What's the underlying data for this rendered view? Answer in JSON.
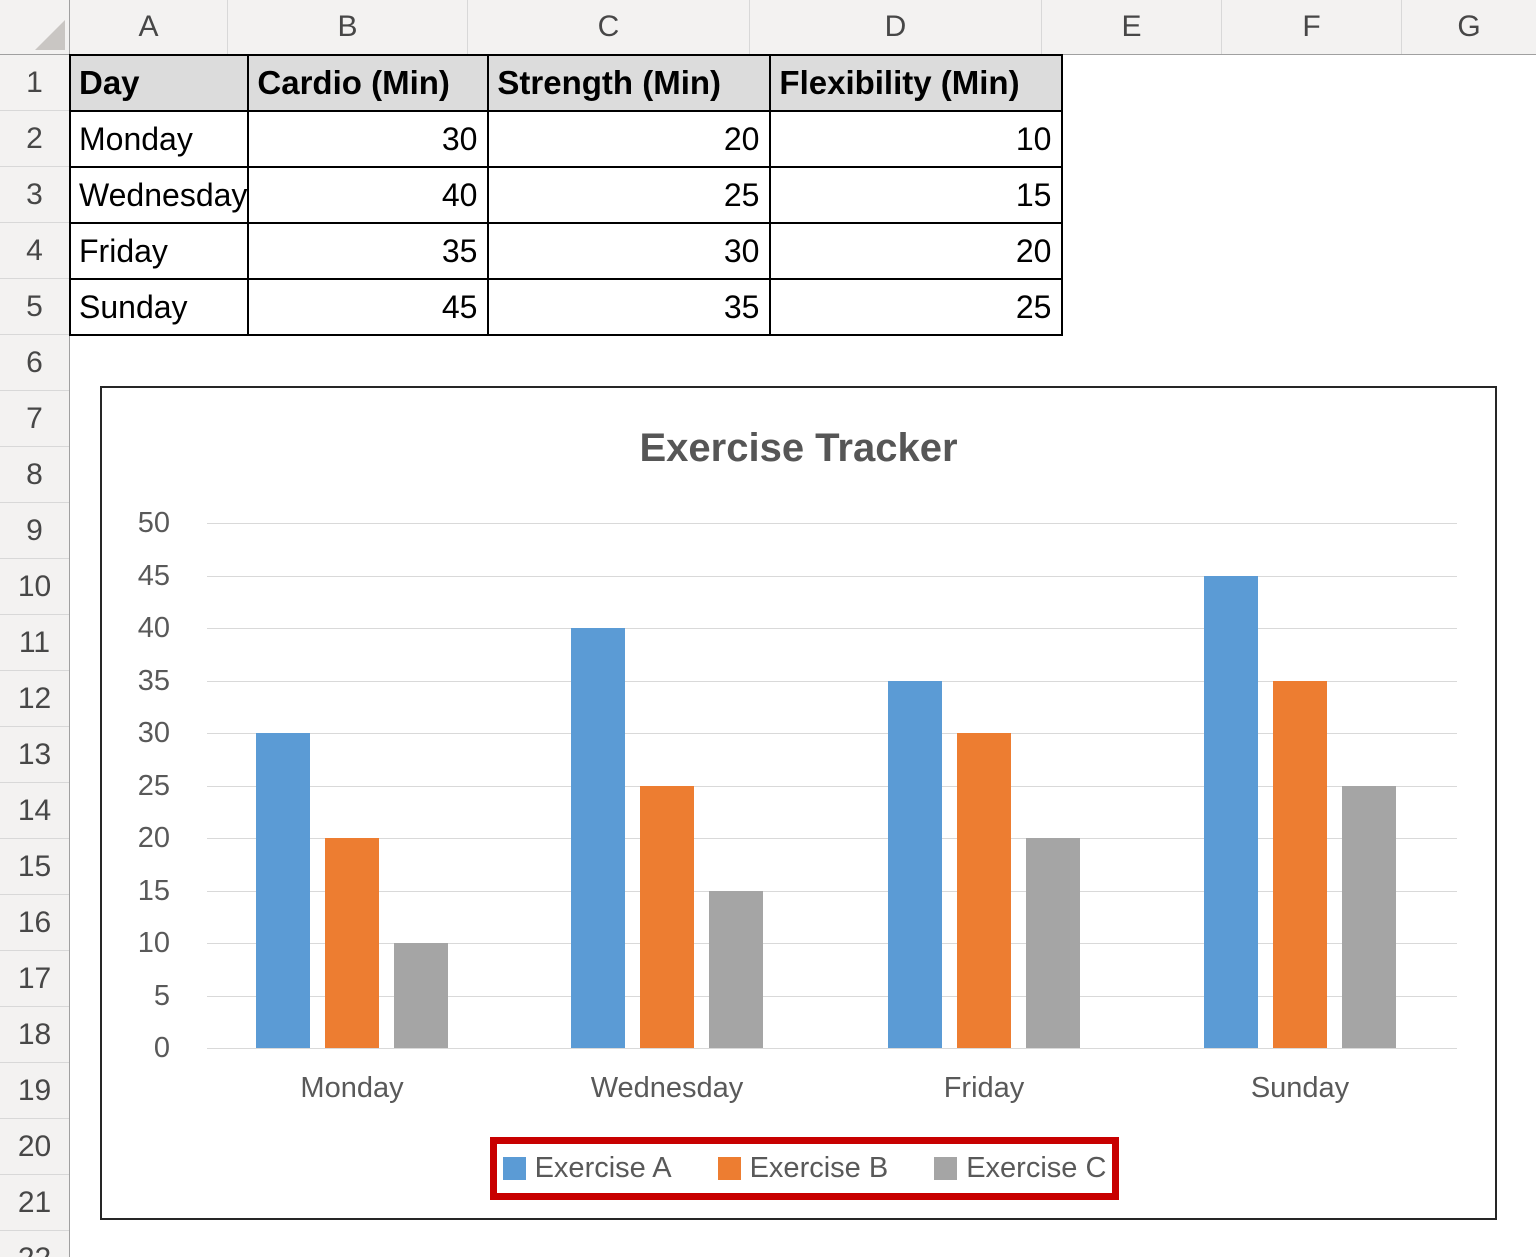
{
  "spreadsheet": {
    "column_letters": [
      "A",
      "B",
      "C",
      "D",
      "E",
      "F",
      "G"
    ],
    "row_numbers": [
      "1",
      "2",
      "3",
      "4",
      "5",
      "6",
      "7",
      "8",
      "9",
      "10",
      "11",
      "12",
      "13",
      "14",
      "15",
      "16",
      "17",
      "18",
      "19",
      "20",
      "21",
      "22"
    ],
    "table": {
      "headers": [
        "Day",
        "Cardio (Min)",
        "Strength (Min)",
        "Flexibility (Min)"
      ],
      "rows": [
        [
          "Monday",
          "30",
          "20",
          "10"
        ],
        [
          "Wednesday",
          "40",
          "25",
          "15"
        ],
        [
          "Friday",
          "35",
          "30",
          "20"
        ],
        [
          "Sunday",
          "45",
          "35",
          "25"
        ]
      ]
    }
  },
  "chart_data": {
    "type": "bar",
    "title": "Exercise Tracker",
    "categories": [
      "Monday",
      "Wednesday",
      "Friday",
      "Sunday"
    ],
    "series": [
      {
        "name": "Exercise A",
        "color": "#5B9BD5",
        "values": [
          30,
          40,
          35,
          45
        ]
      },
      {
        "name": "Exercise B",
        "color": "#ED7D31",
        "values": [
          20,
          25,
          30,
          35
        ]
      },
      {
        "name": "Exercise C",
        "color": "#A5A5A5",
        "values": [
          10,
          15,
          20,
          25
        ]
      }
    ],
    "xlabel": "",
    "ylabel": "",
    "ylim": [
      0,
      50
    ],
    "ytick_step": 5,
    "grid": true,
    "gridline_color": "#D9D9D9",
    "legend_position": "bottom",
    "annotation": {
      "type": "red-box-highlight",
      "target": "legend",
      "color": "#C80000"
    }
  }
}
